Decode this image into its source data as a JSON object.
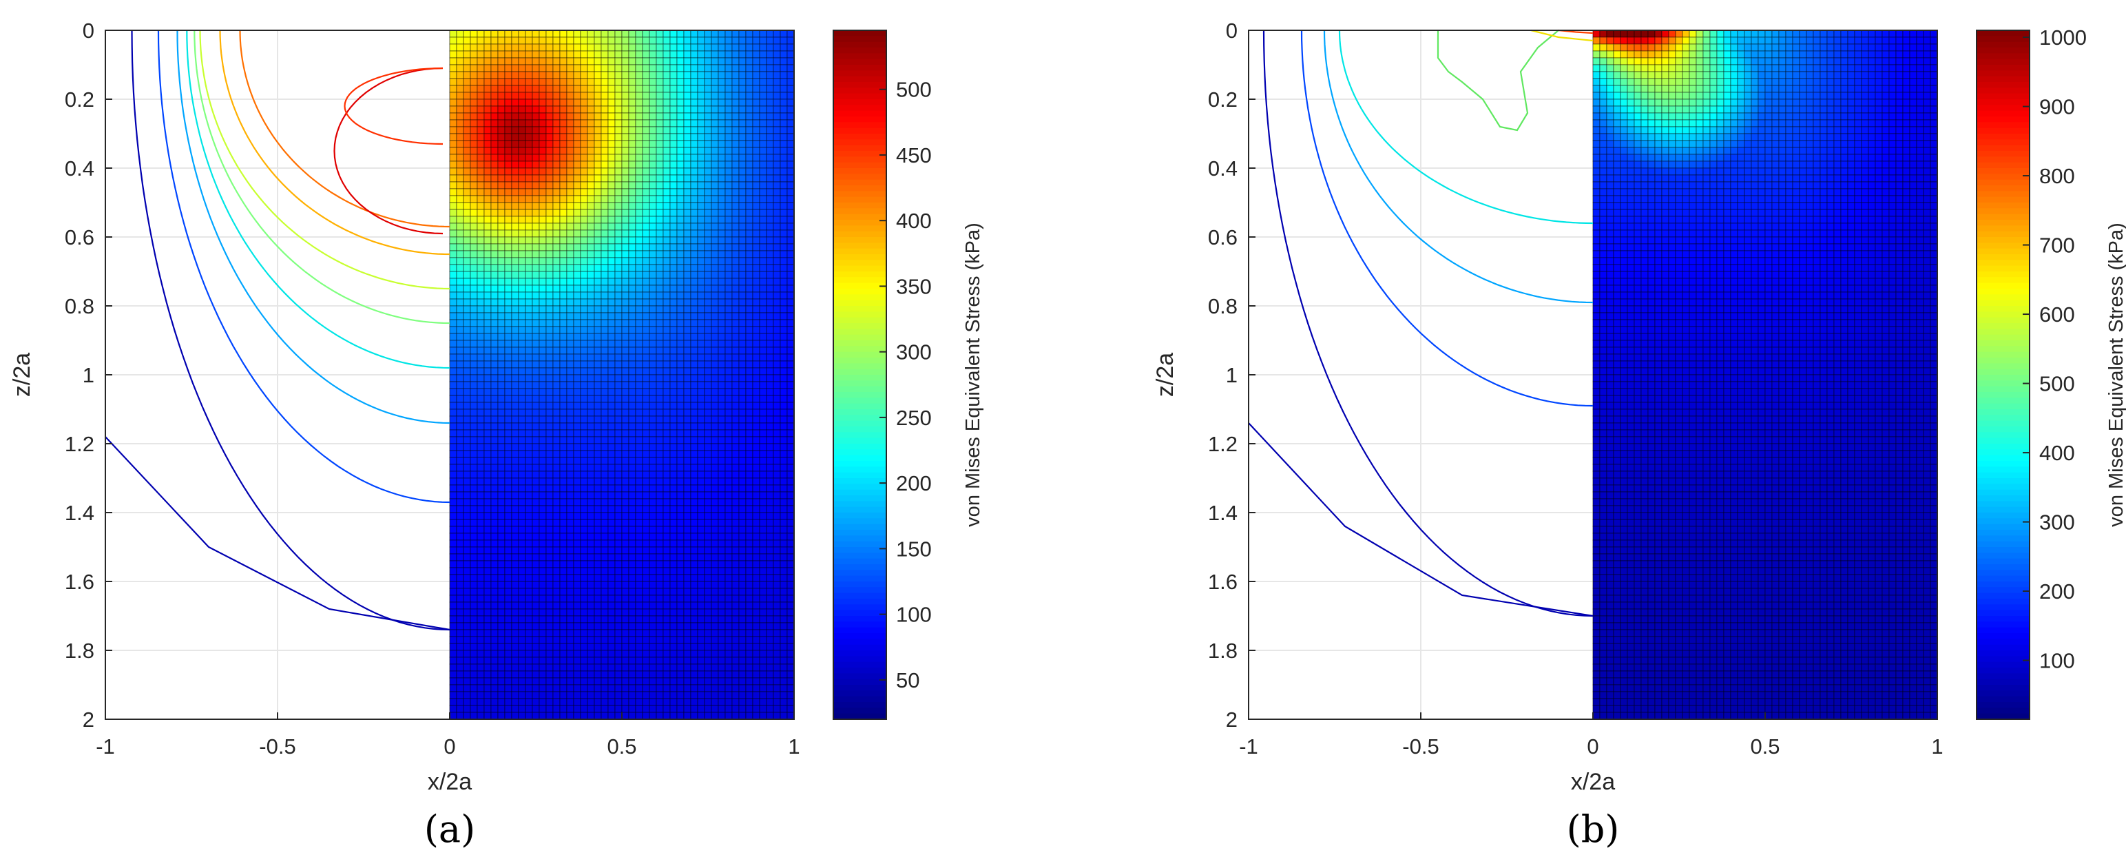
{
  "chart_data": [
    {
      "type": "heatmap",
      "panel_label": "(a)",
      "xlabel": "x/2a",
      "ylabel": "z/2a",
      "colorbar_label": "von Mises Equivalent Stress (kPa)",
      "xlim": [
        -1,
        1
      ],
      "ylim": [
        0,
        2
      ],
      "y_reversed": true,
      "grid": true,
      "xticks": [
        "-1",
        "-0.5",
        "0",
        "0.5",
        "1"
      ],
      "yticks": [
        "0",
        "0.2",
        "0.4",
        "0.6",
        "0.8",
        "1",
        "1.2",
        "1.4",
        "1.6",
        "1.8",
        "2"
      ],
      "colorbar_ticks": [
        "50",
        "100",
        "150",
        "200",
        "250",
        "300",
        "350",
        "400",
        "450",
        "500"
      ],
      "colorbar_range": [
        20,
        545
      ],
      "colormap": "jet",
      "left_half": "contour lines of stress",
      "right_half": "meshed colour map of stress",
      "peak": {
        "x": 0.2,
        "z": 0.3,
        "value": 545
      }
    },
    {
      "type": "heatmap",
      "panel_label": "(b)",
      "xlabel": "x/2a",
      "ylabel": "z/2a",
      "colorbar_label": "von Mises Equivalent Stress (kPa)",
      "xlim": [
        -1,
        1
      ],
      "ylim": [
        0,
        2
      ],
      "y_reversed": true,
      "grid": true,
      "xticks": [
        "-1",
        "-0.5",
        "0",
        "0.5",
        "1"
      ],
      "yticks": [
        "0",
        "0.2",
        "0.4",
        "0.6",
        "0.8",
        "1",
        "1.2",
        "1.4",
        "1.6",
        "1.8",
        "2"
      ],
      "colorbar_ticks": [
        "100",
        "200",
        "300",
        "400",
        "500",
        "600",
        "700",
        "800",
        "900",
        "1000"
      ],
      "colorbar_range": [
        15,
        1010
      ],
      "colormap": "jet",
      "left_half": "contour lines of stress",
      "right_half": "meshed colour map of stress",
      "peak": {
        "x": 0.05,
        "z": 0.0,
        "value": 1010
      }
    }
  ]
}
